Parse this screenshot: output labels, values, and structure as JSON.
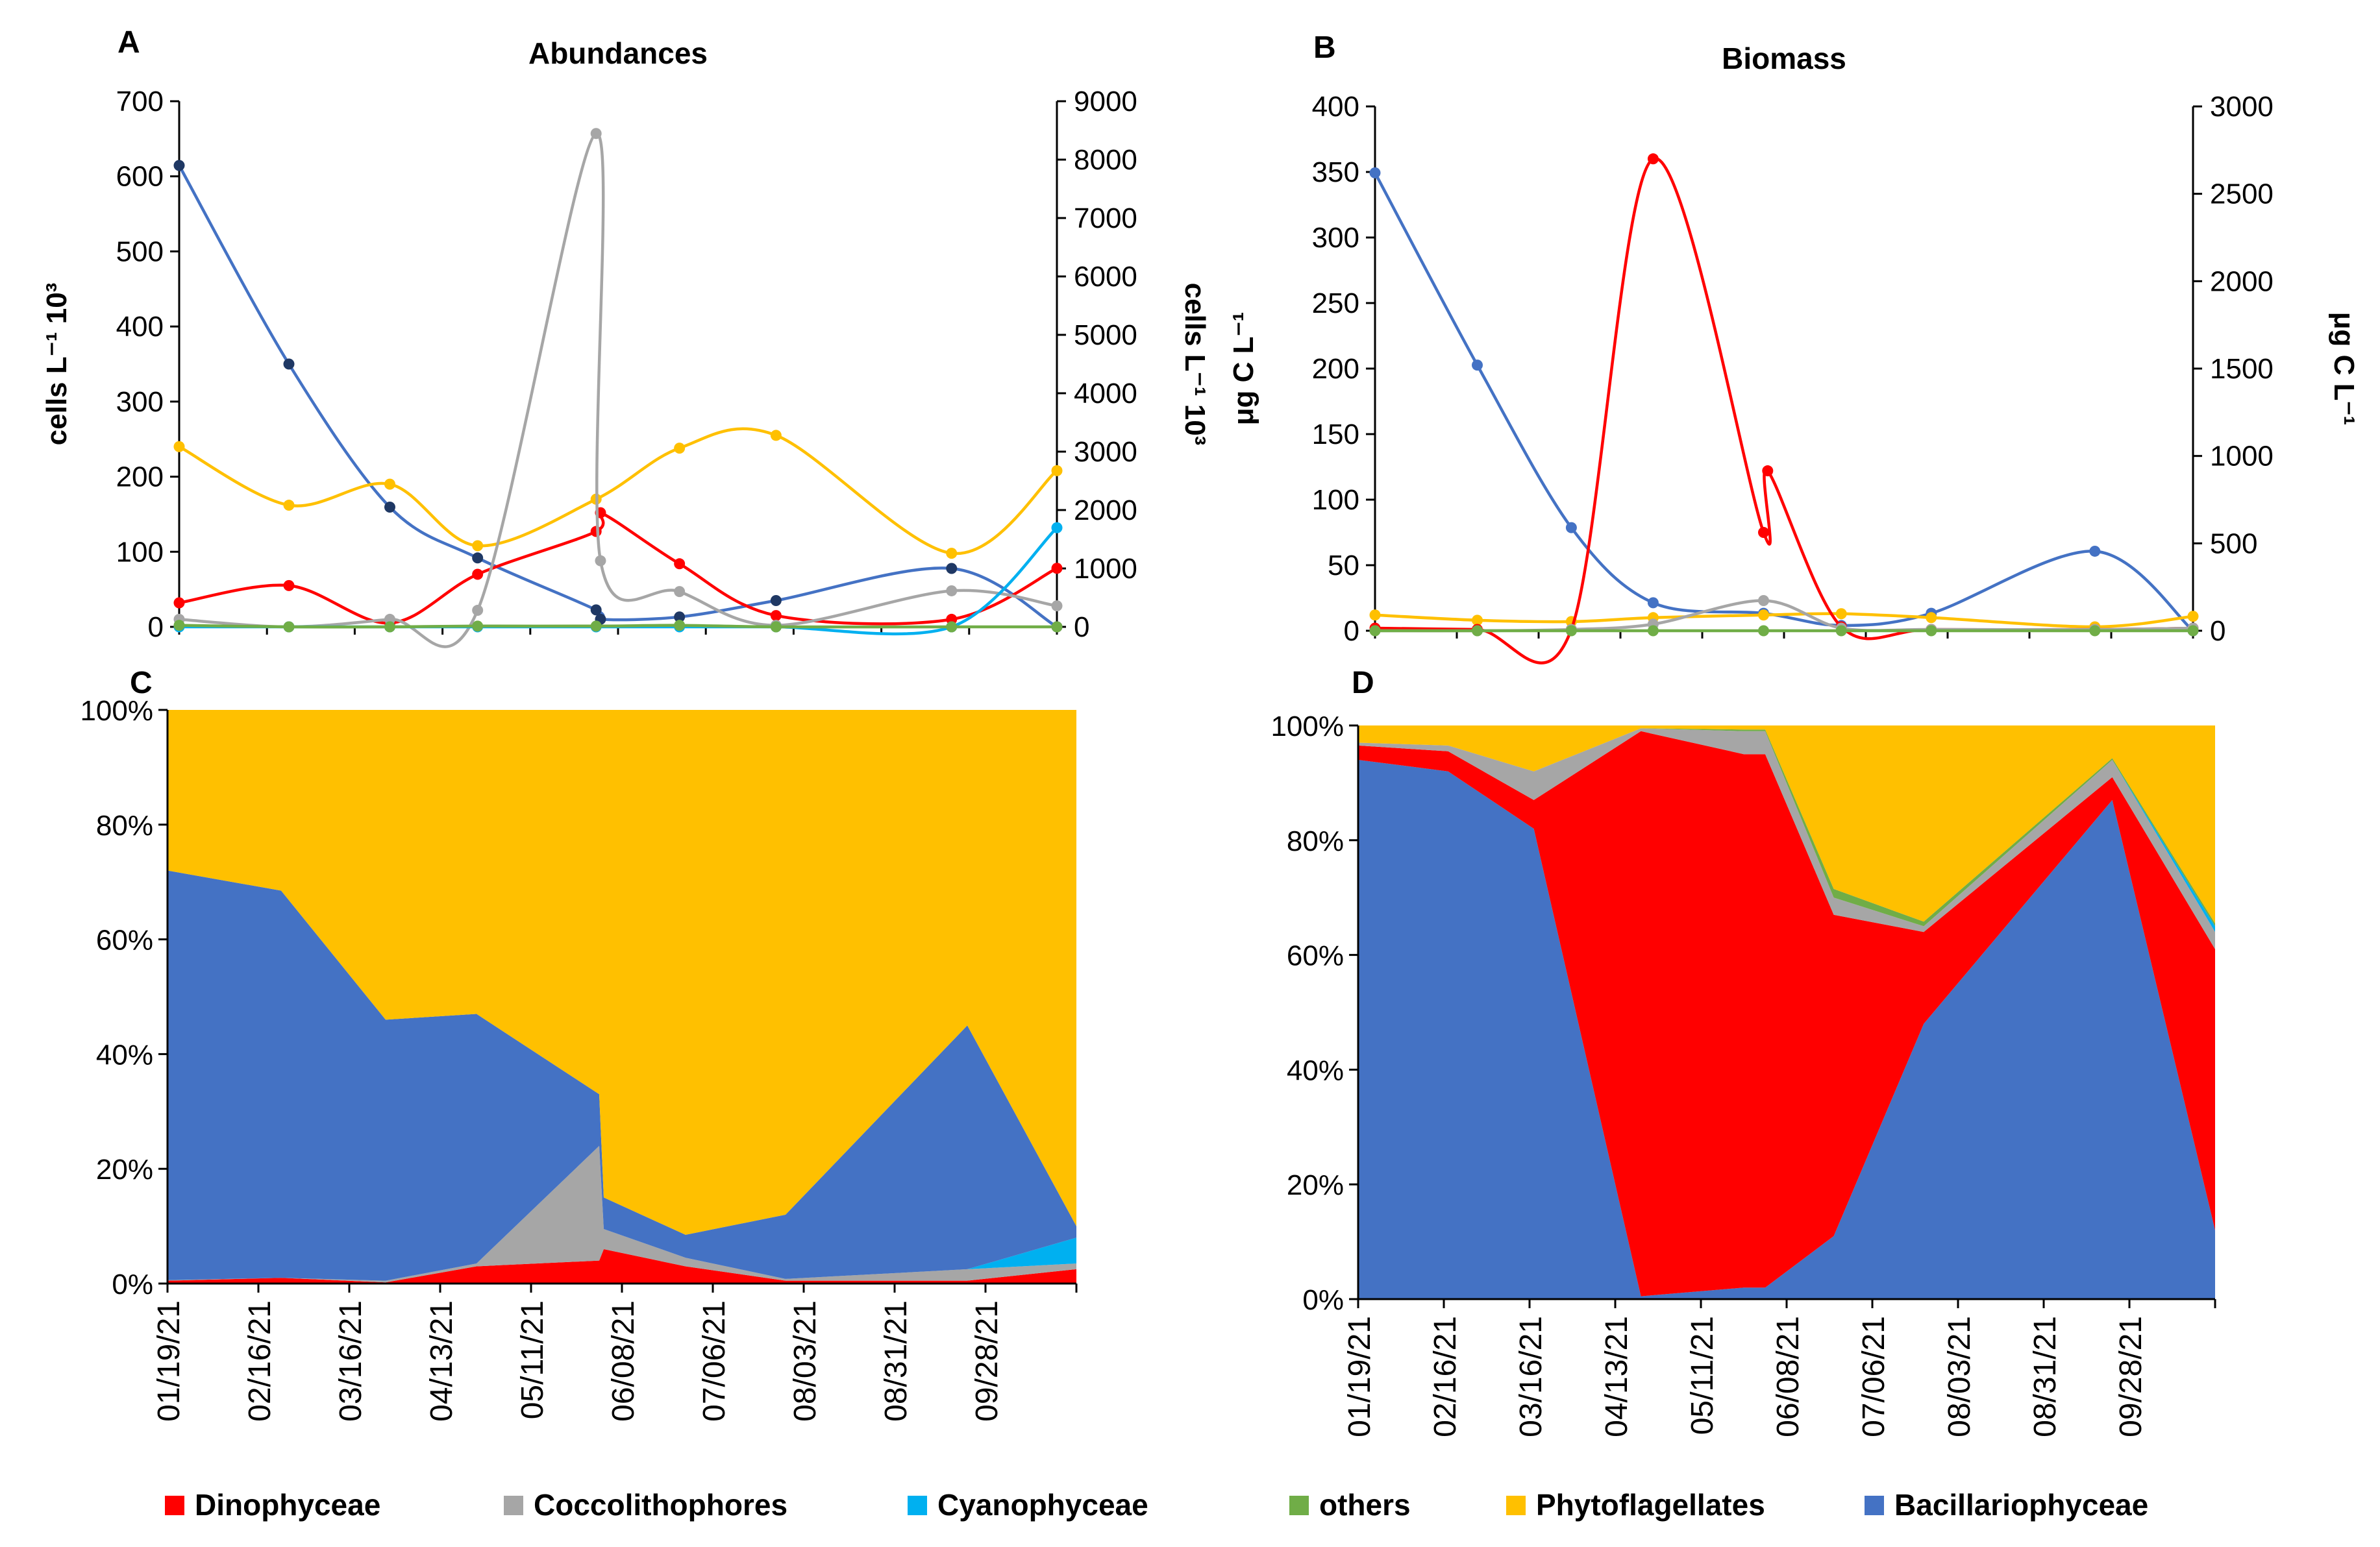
{
  "x_dates": [
    "01/19/21",
    "02/16/21",
    "03/16/21",
    "04/13/21",
    "05/11/21",
    "06/08/21",
    "07/06/21",
    "08/03/21",
    "08/31/21",
    "09/28/21"
  ],
  "colors": {
    "Dinophyceae": "#ff0000",
    "Coccolithophores": "#a6a6a6",
    "Cyanophyceae": "#00b0f0",
    "others": "#70ad47",
    "Phytoflagellates": "#ffc000",
    "Bacillariophyceae": "#4472c4",
    "diatom_marker": "#1f3864"
  },
  "legend": [
    "Dinophyceae",
    "Coccolithophores",
    "Cyanophyceae",
    "others",
    "Phytoflagellates",
    "Bacillariophyceae"
  ],
  "chart_data": [
    {
      "panel": "A",
      "type": "line",
      "title": "Abundances",
      "ylabel_left": "cells L⁻¹ 10³",
      "ylabel_right": "cells L⁻¹ 10³",
      "ylim_left": [
        0,
        700
      ],
      "yticks_left": [
        0,
        100,
        200,
        300,
        400,
        500,
        600,
        700
      ],
      "ylim_right": [
        0,
        9000
      ],
      "yticks_right": [
        0,
        1000,
        2000,
        3000,
        4000,
        5000,
        6000,
        7000,
        8000,
        9000
      ],
      "x": [
        0,
        1.25,
        2.5,
        3.5,
        4.5,
        4.55,
        5.5,
        6.5,
        8.5,
        10
      ],
      "series": [
        {
          "name": "Bacillariophyceae",
          "axis": "right",
          "x": [
            0,
            1.25,
            2.4,
            3.4,
            4.75,
            4.8,
            5.7,
            6.8,
            8.8,
            10
          ],
          "values": [
            7900,
            4500,
            2050,
            1180,
            290,
            130,
            170,
            450,
            1000,
            0
          ]
        },
        {
          "name": "Phytoflagellates",
          "axis": "left",
          "x": [
            0,
            1.25,
            2.4,
            3.4,
            4.75,
            5.7,
            6.8,
            8.8,
            10
          ],
          "values": [
            240,
            162,
            190,
            108,
            170,
            238,
            255,
            98,
            208
          ]
        },
        {
          "name": "Dinophyceae",
          "axis": "left",
          "x": [
            0,
            1.25,
            2.4,
            3.4,
            4.75,
            4.8,
            5.7,
            6.8,
            8.8,
            10
          ],
          "values": [
            32,
            55,
            5,
            70,
            127,
            152,
            84,
            15,
            10,
            78
          ]
        },
        {
          "name": "Coccolithophores",
          "axis": "left",
          "x": [
            0,
            1.25,
            2.4,
            3.4,
            4.75,
            4.8,
            5.7,
            6.8,
            8.8,
            10
          ],
          "values": [
            10,
            0,
            10,
            22,
            657,
            88,
            47,
            2,
            48,
            28
          ]
        },
        {
          "name": "Cyanophyceae",
          "axis": "left",
          "x": [
            0,
            1.25,
            2.4,
            3.4,
            4.75,
            5.7,
            6.8,
            8.8,
            10
          ],
          "values": [
            0,
            0,
            0,
            0,
            0,
            0,
            0,
            0,
            132
          ]
        },
        {
          "name": "others",
          "axis": "left",
          "x": [
            0,
            1.25,
            2.4,
            3.4,
            4.75,
            5.7,
            6.8,
            8.8,
            10
          ],
          "values": [
            2,
            0,
            0,
            1,
            1,
            2,
            0,
            0,
            0
          ]
        }
      ]
    },
    {
      "panel": "B",
      "type": "line",
      "title": "Biomass",
      "ylabel_left": "μg C L⁻¹",
      "ylabel_right": "μg C L⁻¹",
      "ylim_left": [
        0,
        400
      ],
      "yticks_left": [
        0,
        50,
        100,
        150,
        200,
        250,
        300,
        350,
        400
      ],
      "ylim_right": [
        0,
        3000
      ],
      "yticks_right": [
        0,
        500,
        1000,
        1500,
        2000,
        2500,
        3000
      ],
      "series": [
        {
          "name": "Bacillariophyceae",
          "axis": "right",
          "x": [
            0,
            1.25,
            2.4,
            3.4,
            4.75,
            5.7,
            6.8,
            8.8,
            10
          ],
          "values": [
            2620,
            1520,
            590,
            160,
            100,
            30,
            100,
            455,
            0
          ]
        },
        {
          "name": "Phytoflagellates",
          "axis": "left",
          "x": [
            0,
            1.25,
            2.4,
            3.4,
            4.75,
            5.7,
            6.8,
            8.8,
            10
          ],
          "values": [
            12,
            8,
            7,
            10,
            12,
            13,
            10,
            3,
            11
          ]
        },
        {
          "name": "Dinophyceae",
          "axis": "left",
          "x": [
            0,
            1.25,
            2.4,
            3.4,
            4.75,
            4.8,
            5.7,
            6.8,
            8.8,
            10
          ],
          "values": [
            2,
            1,
            1,
            360,
            75,
            122,
            3,
            1,
            1,
            2
          ]
        },
        {
          "name": "Coccolithophores",
          "axis": "left",
          "x": [
            0,
            1.25,
            2.4,
            3.4,
            4.75,
            5.7,
            6.8,
            8.8,
            10
          ],
          "values": [
            0,
            0,
            1,
            5,
            23,
            2,
            1,
            1,
            2
          ]
        },
        {
          "name": "others",
          "axis": "left",
          "x": [
            0,
            1.25,
            2.4,
            3.4,
            4.75,
            5.7,
            6.8,
            8.8,
            10
          ],
          "values": [
            0,
            0,
            0,
            0,
            0,
            0,
            0,
            0,
            0
          ]
        }
      ]
    },
    {
      "panel": "C",
      "type": "area",
      "stacked_percent": true,
      "yticks": [
        "0%",
        "20%",
        "40%",
        "60%",
        "80%",
        "100%"
      ],
      "x": [
        0,
        1.25,
        2.4,
        3.4,
        4.75,
        4.8,
        5.7,
        6.8,
        8.8,
        10
      ],
      "series": [
        {
          "name": "Dinophyceae",
          "values": [
            0.5,
            1,
            0.2,
            3,
            4,
            6,
            3,
            0.5,
            0.5,
            2.5
          ]
        },
        {
          "name": "Coccolithophores",
          "values": [
            0.1,
            0,
            0.3,
            0.5,
            20,
            3.5,
            1.5,
            0.3,
            2,
            1
          ]
        },
        {
          "name": "Cyanophyceae",
          "values": [
            0,
            0,
            0,
            0,
            0,
            0,
            0,
            0,
            0,
            4.5
          ]
        },
        {
          "name": "others",
          "values": [
            0,
            0,
            0,
            0,
            0,
            0,
            0,
            0,
            0,
            0
          ]
        },
        {
          "name": "Bacillariophyceae",
          "values": [
            71.4,
            67.5,
            45.5,
            43.5,
            9,
            5.5,
            4,
            11.2,
            42.5,
            2
          ]
        },
        {
          "name": "Phytoflagellates",
          "values": [
            28,
            31.5,
            54,
            53,
            67,
            85,
            91.5,
            88,
            55,
            90
          ]
        }
      ]
    },
    {
      "panel": "D",
      "type": "area",
      "stacked_percent": true,
      "yticks": [
        "0%",
        "20%",
        "40%",
        "60%",
        "80%",
        "100%"
      ],
      "x": [
        0,
        1.05,
        2.05,
        3.3,
        4.5,
        4.75,
        5.55,
        6.6,
        8.8,
        10
      ],
      "series": [
        {
          "name": "Bacillariophyceae",
          "values": [
            94,
            92,
            82,
            0.5,
            2,
            2,
            11,
            48,
            87,
            12
          ]
        },
        {
          "name": "Dinophyceae",
          "values": [
            2.5,
            3.5,
            5,
            98.5,
            93,
            93,
            56,
            16,
            4,
            49
          ]
        },
        {
          "name": "Coccolithophores",
          "values": [
            0.5,
            1,
            5,
            0.5,
            4,
            4,
            3,
            1,
            3,
            3
          ]
        },
        {
          "name": "Cyanophyceae",
          "values": [
            0,
            0,
            0,
            0,
            0,
            0,
            0,
            0,
            0,
            1
          ]
        },
        {
          "name": "others",
          "values": [
            0,
            0,
            0,
            0,
            0.3,
            0.3,
            1.5,
            0.8,
            0.3,
            0.5
          ]
        },
        {
          "name": "Phytoflagellates",
          "values": [
            3,
            3.5,
            8,
            0.5,
            0.7,
            0.7,
            28.5,
            34.2,
            5.7,
            34.5
          ]
        }
      ]
    }
  ]
}
